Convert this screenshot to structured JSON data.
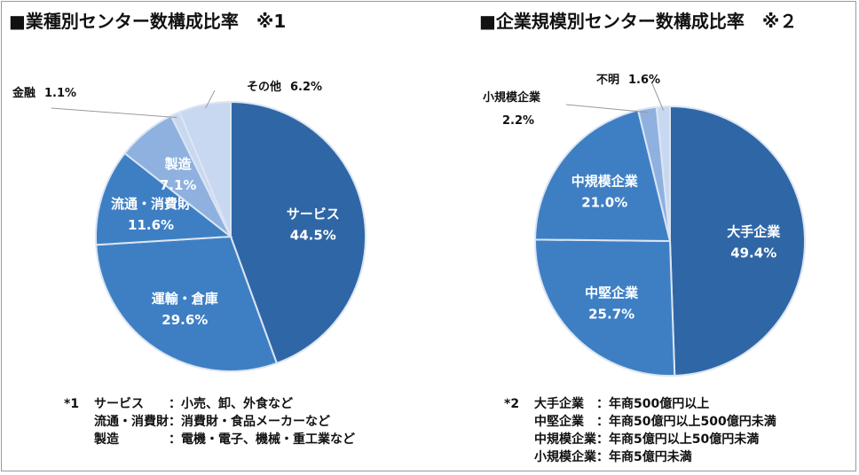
{
  "titles": {
    "left": "■業種別センター数構成比率　※1",
    "right": "■企業規模別センター数構成比率　※２"
  },
  "colors": {
    "dark": "#2f66a6",
    "mid": "#3e7fc4",
    "light": "#8fb1e0",
    "pale": "#c9d8f1",
    "edge": "#dbe5f3",
    "leader": "#9a9a9a"
  },
  "chart_data": [
    {
      "type": "pie",
      "title": "■業種別センター数構成比率　※1",
      "slices": [
        {
          "label": "サービス",
          "value": 44.5,
          "pct_text": "44.5%",
          "color": "#2f66a6",
          "label_pos": "inside"
        },
        {
          "label": "運輸・倉庫",
          "value": 29.6,
          "pct_text": "29.6%",
          "color": "#3e7fc4",
          "label_pos": "inside"
        },
        {
          "label": "流通・消費財",
          "value": 11.6,
          "pct_text": "11.6%",
          "color": "#3e7fc4",
          "label_pos": "inside"
        },
        {
          "label": "製造",
          "value": 7.1,
          "pct_text": "7.1%",
          "color": "#8fb1e0",
          "label_pos": "inside"
        },
        {
          "label": "金融",
          "value": 1.1,
          "pct_text": "1.1%",
          "color": "#c9d8f1",
          "label_pos": "outside-left"
        },
        {
          "label": "その他",
          "value": 6.2,
          "pct_text": "6.2%",
          "color": "#c9d8f1",
          "label_pos": "outside-top"
        }
      ]
    },
    {
      "type": "pie",
      "title": "■企業規模別センター数構成比率　※２",
      "slices": [
        {
          "label": "大手企業",
          "value": 49.4,
          "pct_text": "49.4%",
          "color": "#2f66a6",
          "label_pos": "inside"
        },
        {
          "label": "中堅企業",
          "value": 25.7,
          "pct_text": "25.7%",
          "color": "#3e7fc4",
          "label_pos": "inside"
        },
        {
          "label": "中規模企業",
          "value": 21.0,
          "pct_text": "21.0%",
          "color": "#3e7fc4",
          "label_pos": "inside"
        },
        {
          "label": "小規模企業",
          "value": 2.2,
          "pct_text": "2.2%",
          "color": "#8fb1e0",
          "label_pos": "outside-left"
        },
        {
          "label": "不明",
          "value": 1.6,
          "pct_text": "1.6%",
          "color": "#c9d8f1",
          "label_pos": "outside-top"
        }
      ]
    }
  ],
  "notes_left": {
    "marker": "*1",
    "rows": [
      {
        "term": "サービス",
        "desc": "：小売、卸、外食など"
      },
      {
        "term": "流通・消費財",
        "desc": "：消費財・食品メーカーなど"
      },
      {
        "term": "製造",
        "desc": "：電機・電子、機械・重工業など"
      }
    ]
  },
  "notes_right": {
    "marker": "*2",
    "rows": [
      {
        "term": "大手企業",
        "desc": "：年商500億円以上"
      },
      {
        "term": "中堅企業",
        "desc": "：年商50億円以上500億円未満"
      },
      {
        "term": "中規模企業",
        "desc": "：年商5億円以上50億円未満"
      },
      {
        "term": "小規模企業",
        "desc": "：年商5億円未満"
      }
    ]
  }
}
